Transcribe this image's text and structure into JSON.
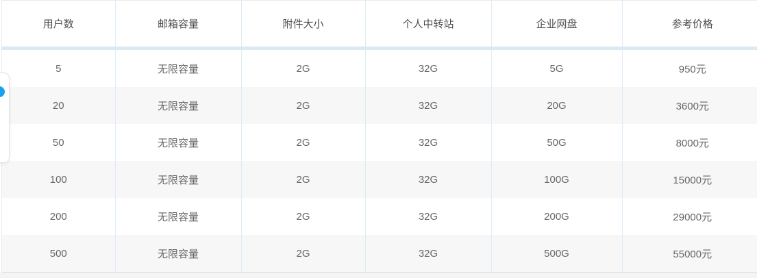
{
  "table": {
    "headers": [
      "用户数",
      "邮箱容量",
      "附件大小",
      "个人中转站",
      "企业网盘",
      "参考价格"
    ],
    "rows": [
      [
        "5",
        "无限容量",
        "2G",
        "32G",
        "5G",
        "950元"
      ],
      [
        "20",
        "无限容量",
        "2G",
        "32G",
        "20G",
        "3600元"
      ],
      [
        "50",
        "无限容量",
        "2G",
        "32G",
        "50G",
        "8000元"
      ],
      [
        "100",
        "无限容量",
        "2G",
        "32G",
        "100G",
        "15000元"
      ],
      [
        "200",
        "无限容量",
        "2G",
        "32G",
        "200G",
        "29000元"
      ],
      [
        "500",
        "无限容量",
        "2G",
        "32G",
        "500G",
        "55000元"
      ]
    ],
    "colors": {
      "header_divider": "#d9eaf5",
      "column_separator": "#ddecf6",
      "zebra_row": "#f7f7f7",
      "header_text": "#4d4d4d",
      "cell_text": "#666666",
      "outer_border": "#eaeaea",
      "bottom_strip": "#f4f4f4"
    }
  },
  "side_widget": {
    "dot_icon": "blue-circle",
    "dot_color": "#1aa2e9"
  }
}
